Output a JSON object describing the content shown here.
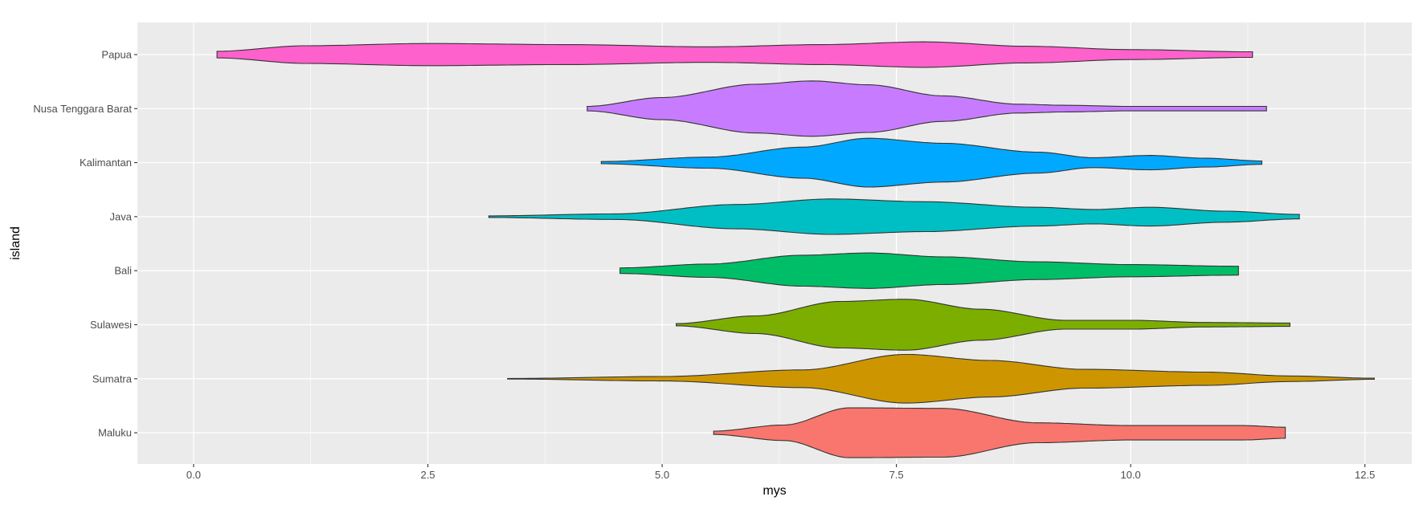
{
  "chart_data": {
    "type": "violin",
    "orientation": "horizontal",
    "xlabel": "mys",
    "ylabel": "island",
    "xlim": [
      -0.6,
      13.0
    ],
    "xticks": [
      0.0,
      2.5,
      5.0,
      7.5,
      10.0,
      12.5
    ],
    "xtick_labels": [
      "0.0",
      "2.5",
      "5.0",
      "7.5",
      "10.0",
      "12.5"
    ],
    "grid": true,
    "legend": "none",
    "categories_top_to_bottom": [
      "Papua",
      "Nusa Tenggara Barat",
      "Kalimantan",
      "Java",
      "Bali",
      "Sulawesi",
      "Sumatra",
      "Maluku"
    ],
    "series": [
      {
        "name": "Papua",
        "color": "#FF61CC",
        "min": 0.25,
        "max": 11.3,
        "density": [
          [
            0.25,
            0.6
          ],
          [
            1.2,
            1.6
          ],
          [
            2.5,
            2.0
          ],
          [
            4.0,
            1.8
          ],
          [
            5.5,
            1.4
          ],
          [
            6.7,
            1.8
          ],
          [
            7.8,
            2.3
          ],
          [
            8.9,
            1.5
          ],
          [
            10.0,
            0.9
          ],
          [
            11.3,
            0.5
          ]
        ]
      },
      {
        "name": "Nusa Tenggara Barat",
        "color": "#C77CFF",
        "min": 4.2,
        "max": 11.45,
        "density": [
          [
            4.2,
            0.4
          ],
          [
            5.0,
            2.0
          ],
          [
            6.0,
            4.4
          ],
          [
            6.6,
            5.0
          ],
          [
            7.2,
            4.3
          ],
          [
            8.0,
            2.3
          ],
          [
            8.8,
            0.8
          ],
          [
            9.3,
            0.6
          ],
          [
            10.0,
            0.4
          ],
          [
            11.45,
            0.4
          ]
        ]
      },
      {
        "name": "Kalimantan",
        "color": "#00A9FF",
        "min": 4.35,
        "max": 11.4,
        "density": [
          [
            4.35,
            0.2
          ],
          [
            5.5,
            1.0
          ],
          [
            6.5,
            2.8
          ],
          [
            7.2,
            4.4
          ],
          [
            8.0,
            3.5
          ],
          [
            9.0,
            1.9
          ],
          [
            9.6,
            0.9
          ],
          [
            10.2,
            1.3
          ],
          [
            10.8,
            0.8
          ],
          [
            11.4,
            0.3
          ]
        ]
      },
      {
        "name": "Java",
        "color": "#00BFC4",
        "min": 3.15,
        "max": 11.8,
        "density": [
          [
            3.15,
            0.15
          ],
          [
            4.5,
            0.5
          ],
          [
            5.8,
            2.2
          ],
          [
            6.8,
            3.2
          ],
          [
            7.8,
            2.7
          ],
          [
            9.0,
            1.7
          ],
          [
            9.6,
            1.3
          ],
          [
            10.2,
            1.7
          ],
          [
            11.0,
            1.0
          ],
          [
            11.8,
            0.4
          ]
        ]
      },
      {
        "name": "Bali",
        "color": "#00BE67",
        "min": 4.55,
        "max": 11.15,
        "density": [
          [
            4.55,
            0.5
          ],
          [
            5.5,
            1.2
          ],
          [
            6.5,
            2.8
          ],
          [
            7.2,
            3.2
          ],
          [
            8.0,
            2.5
          ],
          [
            9.0,
            1.6
          ],
          [
            10.0,
            1.1
          ],
          [
            11.15,
            0.8
          ]
        ]
      },
      {
        "name": "Sulawesi",
        "color": "#7CAE00",
        "min": 5.15,
        "max": 11.7,
        "density": [
          [
            5.15,
            0.2
          ],
          [
            6.0,
            1.6
          ],
          [
            6.9,
            4.2
          ],
          [
            7.6,
            4.6
          ],
          [
            8.4,
            2.8
          ],
          [
            9.3,
            0.8
          ],
          [
            10.0,
            0.8
          ],
          [
            10.8,
            0.4
          ],
          [
            11.7,
            0.3
          ]
        ]
      },
      {
        "name": "Sumatra",
        "color": "#CD9600",
        "min": 3.35,
        "max": 12.6,
        "density": [
          [
            3.35,
            0.05
          ],
          [
            5.0,
            0.4
          ],
          [
            6.5,
            1.6
          ],
          [
            7.6,
            4.4
          ],
          [
            8.5,
            3.3
          ],
          [
            9.5,
            1.7
          ],
          [
            10.8,
            1.2
          ],
          [
            11.7,
            0.5
          ],
          [
            12.6,
            0.1
          ]
        ]
      },
      {
        "name": "Maluku",
        "color": "#F8766D",
        "min": 5.55,
        "max": 11.65,
        "density": [
          [
            5.55,
            0.3
          ],
          [
            6.3,
            1.4
          ],
          [
            7.0,
            4.5
          ],
          [
            8.0,
            4.4
          ],
          [
            9.0,
            1.8
          ],
          [
            10.0,
            1.3
          ],
          [
            11.2,
            1.3
          ],
          [
            11.65,
            1.0
          ]
        ]
      }
    ]
  }
}
